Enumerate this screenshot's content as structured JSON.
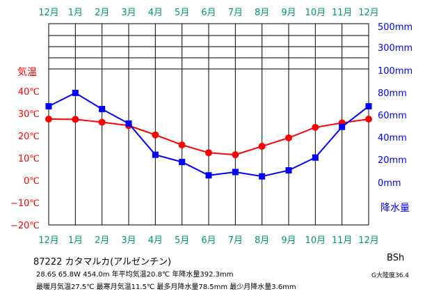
{
  "chart_data": {
    "type": "line",
    "categories": [
      "12月",
      "1月",
      "2月",
      "3月",
      "4月",
      "5月",
      "6月",
      "7月",
      "8月",
      "9月",
      "10月",
      "11月",
      "12月"
    ],
    "series": [
      {
        "name": "気温",
        "axis": "left",
        "color": "#ff0000",
        "marker": "circle",
        "values": [
          27.5,
          27.4,
          26.1,
          24.6,
          20.4,
          15.9,
          12.4,
          11.5,
          15.3,
          19.1,
          23.8,
          25.8,
          27.5
        ]
      },
      {
        "name": "降水量",
        "axis": "right",
        "color": "#0000ff",
        "marker": "square",
        "values": [
          66.5,
          78.5,
          64.0,
          51.0,
          23.0,
          16.5,
          4.5,
          7.5,
          3.6,
          9.0,
          20.5,
          48.0,
          66.5
        ]
      }
    ],
    "ylabel_left": "気温",
    "yticks_left": [
      "40℃",
      "30℃",
      "20℃",
      "10℃",
      "0℃",
      "−10℃",
      "−20℃"
    ],
    "ylim_left": [
      -20,
      40
    ],
    "ylabel_right": "降水量",
    "yticks_right": [
      "500mm",
      "300mm",
      "100mm",
      "80mm",
      "60mm",
      "40mm",
      "20mm",
      "0mm"
    ],
    "ylim_right": [
      0,
      100
    ],
    "right_axis_upper_scale": [
      100,
      300,
      500
    ],
    "colors": {
      "month_labels": "#009966",
      "left_axis": "#ff0000",
      "right_axis": "#0000ff"
    }
  },
  "footer": {
    "station": "87222 カタマルカ(アルゼンチン)",
    "line1": "28.6S 65.8W 454.0m 年平均気温20.8℃ 年降水量392.3mm",
    "line2": "最暖月気温27.5℃ 最寒月気温11.5℃ 最多月降水量78.5mm 最少月降水量3.6mm",
    "climate": "BSh",
    "aridity": "G大陸度36.4"
  }
}
